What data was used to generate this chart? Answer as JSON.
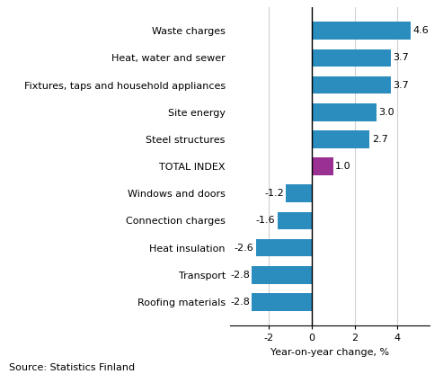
{
  "categories": [
    "Roofing materials",
    "Transport",
    "Heat insulation",
    "Connection charges",
    "Windows and doors",
    "TOTAL INDEX",
    "Steel structures",
    "Site energy",
    "Fixtures, taps and household appliances",
    "Heat, water and sewer",
    "Waste charges"
  ],
  "values": [
    -2.8,
    -2.8,
    -2.6,
    -1.6,
    -1.2,
    1.0,
    2.7,
    3.0,
    3.7,
    3.7,
    4.6
  ],
  "colors": [
    "#2b8cbe",
    "#2b8cbe",
    "#2b8cbe",
    "#2b8cbe",
    "#2b8cbe",
    "#9b3093",
    "#2b8cbe",
    "#2b8cbe",
    "#2b8cbe",
    "#2b8cbe",
    "#2b8cbe"
  ],
  "value_labels": [
    "-2.8",
    "-2.8",
    "-2.6",
    "-1.6",
    "-1.2",
    "1.0",
    "2.7",
    "3.0",
    "3.7",
    "3.7",
    "4.6"
  ],
  "xlabel": "Year-on-year change, %",
  "source": "Source: Statistics Finland",
  "xlim": [
    -3.8,
    5.5
  ],
  "xticks": [
    -2,
    0,
    2,
    4
  ],
  "bar_height": 0.65,
  "background_color": "#ffffff",
  "grid_color": "#d0d0d0",
  "label_fontsize": 8.0,
  "ytick_fontsize": 8.0
}
